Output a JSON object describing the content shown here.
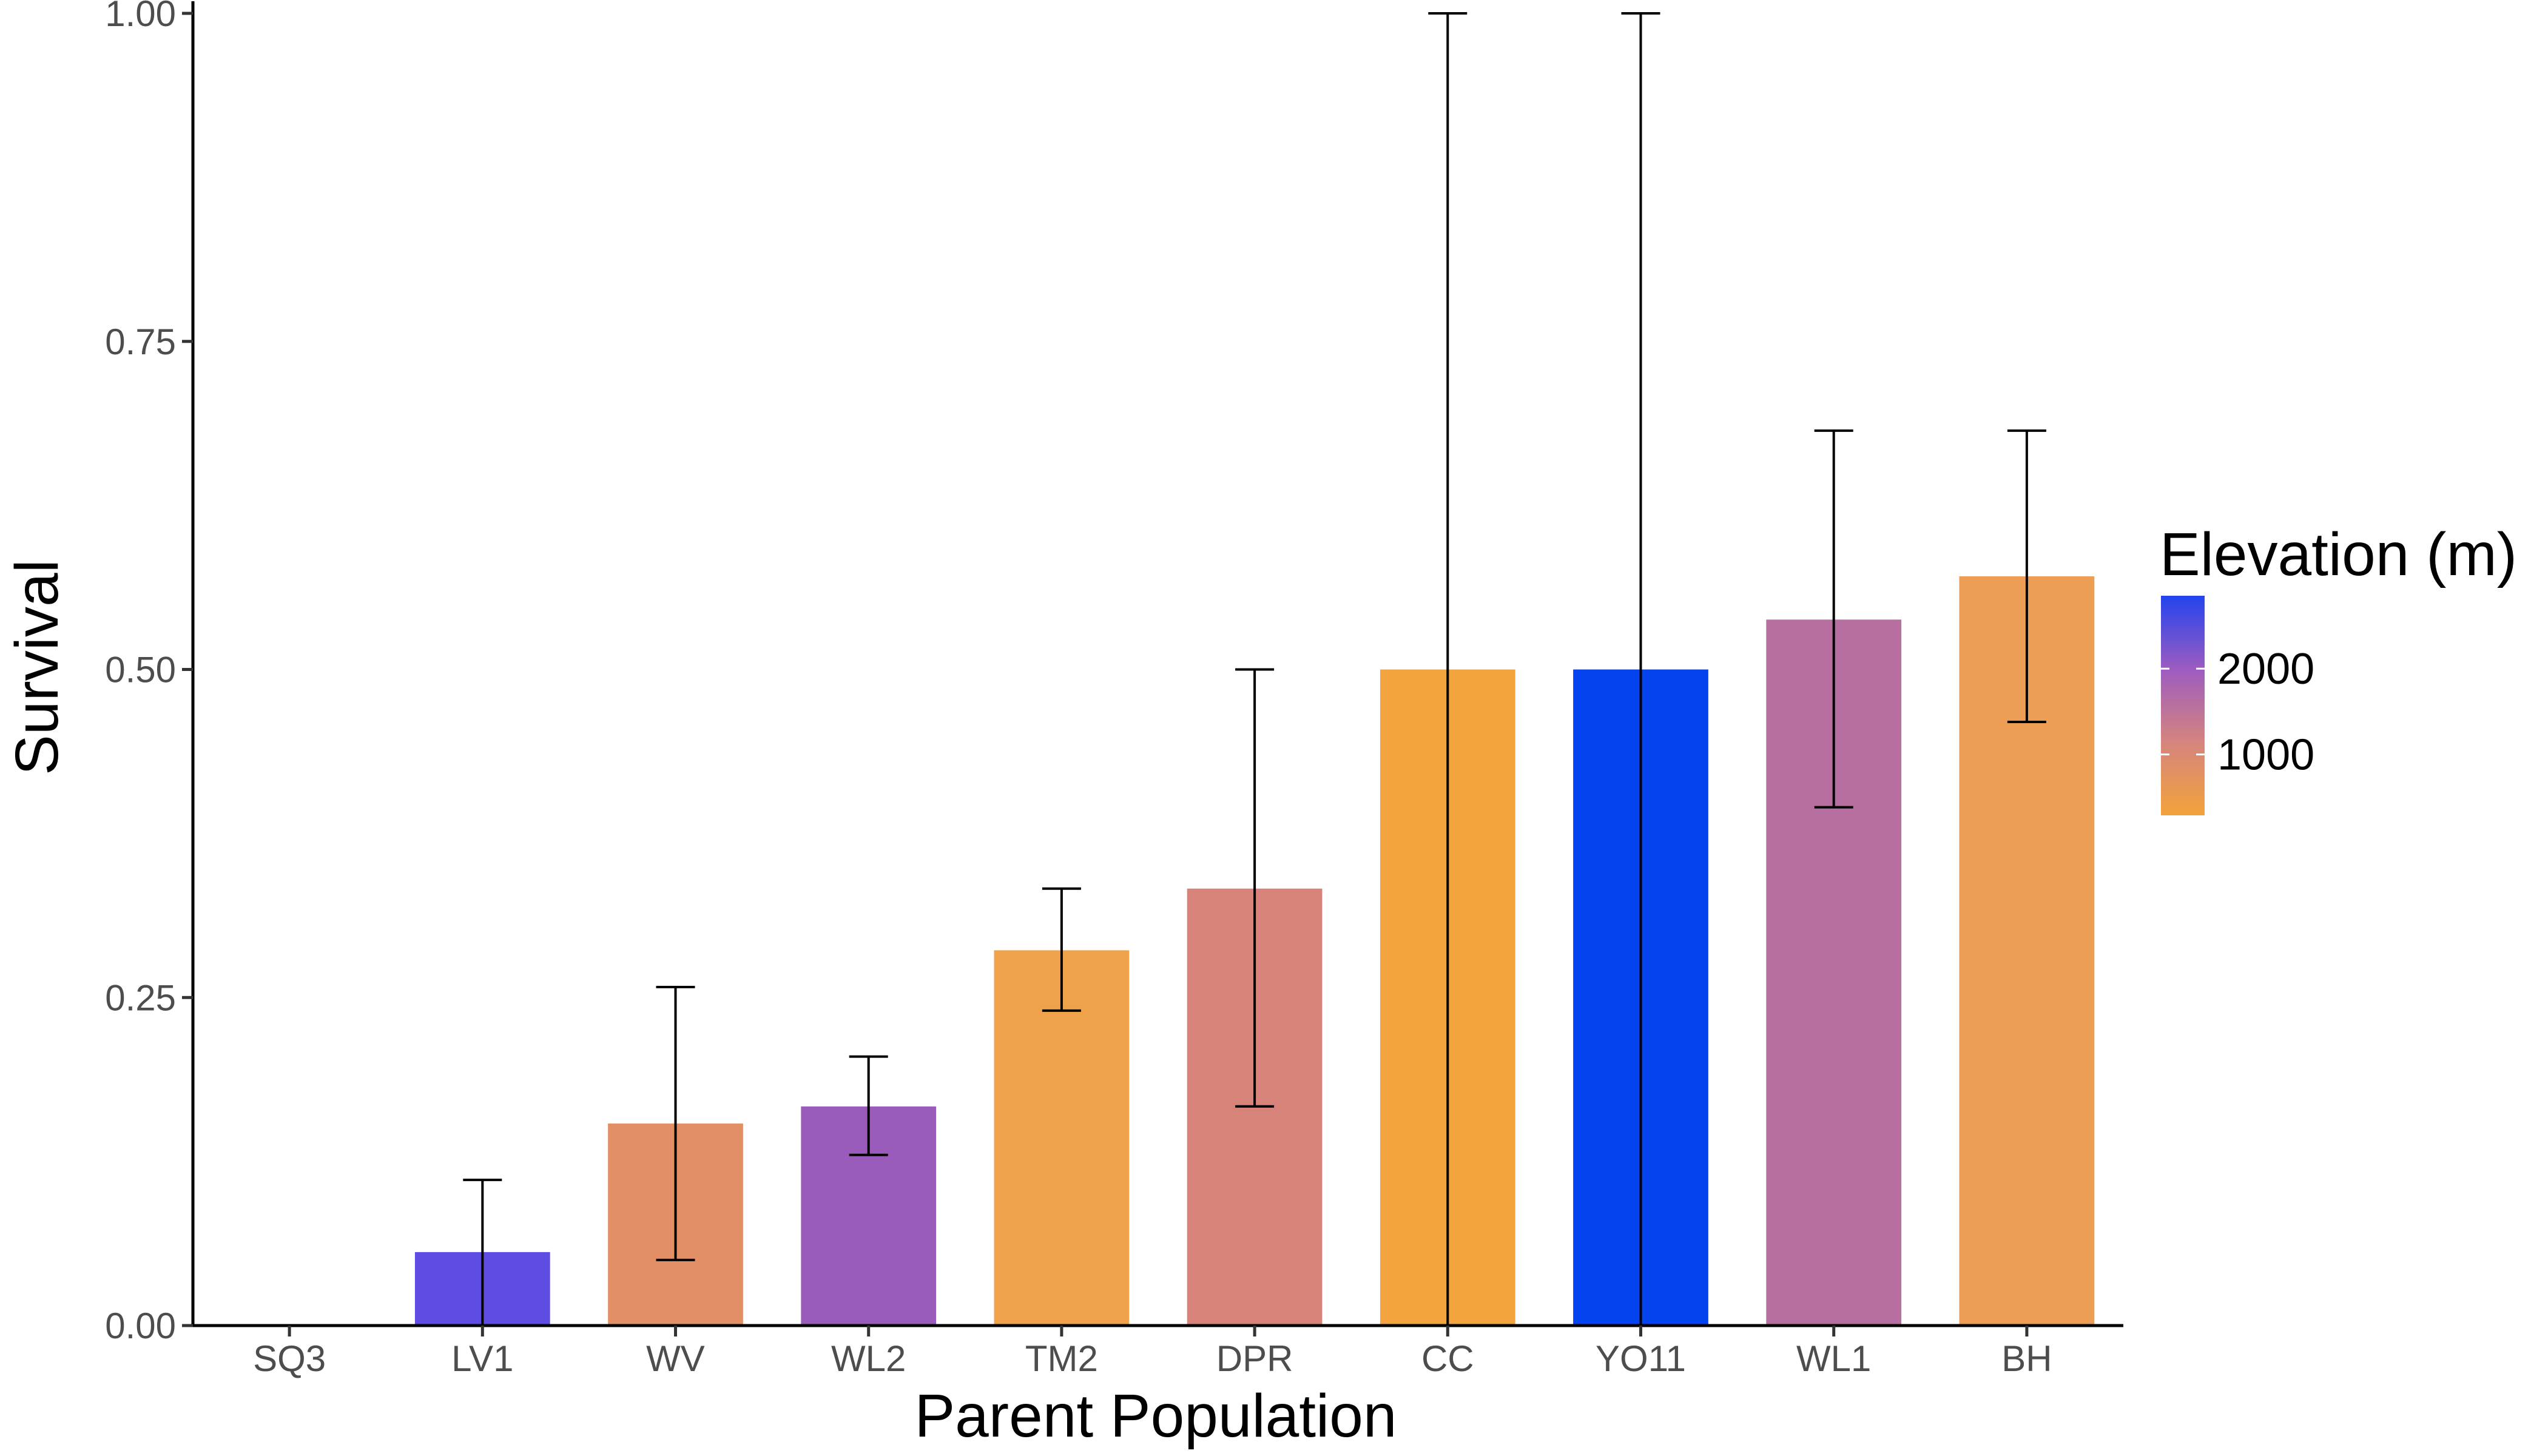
{
  "chart_data": {
    "type": "bar",
    "xlabel": "Parent Population",
    "ylabel": "Survival",
    "ylim": [
      0,
      1
    ],
    "yticks": [
      "0.00",
      "0.25",
      "0.50",
      "0.75",
      "1.00"
    ],
    "ytick_values": [
      0,
      0.25,
      0.5,
      0.75,
      1.0
    ],
    "grid": false,
    "categories": [
      "SQ3",
      "LV1",
      "WV",
      "WL2",
      "TM2",
      "DPR",
      "CC",
      "YO11",
      "WL1",
      "BH"
    ],
    "values": [
      0.0,
      0.056,
      0.154,
      0.167,
      0.286,
      0.333,
      0.5,
      0.5,
      0.538,
      0.571
    ],
    "error_low": [
      null,
      0.0,
      0.05,
      0.13,
      0.24,
      0.167,
      0.0,
      0.0,
      0.395,
      0.46
    ],
    "error_high": [
      null,
      0.111,
      0.258,
      0.205,
      0.333,
      0.5,
      1.0,
      1.0,
      0.682,
      0.682
    ],
    "bar_colors": [
      "#f4a53e",
      "#5e4de0",
      "#e38f66",
      "#995cbb",
      "#f0a24a",
      "#d7837a",
      "#f4a43f",
      "#0443f0",
      "#b76ea1",
      "#ee9d54"
    ],
    "legend": {
      "title": "Elevation (m)",
      "placement": "right",
      "labels": [
        "2000",
        "1000"
      ],
      "label_values": [
        2000,
        1000
      ],
      "gradient_colors": [
        "#f3a33a",
        "#d5847e",
        "#9c5cc0",
        "#2244ee"
      ]
    }
  }
}
